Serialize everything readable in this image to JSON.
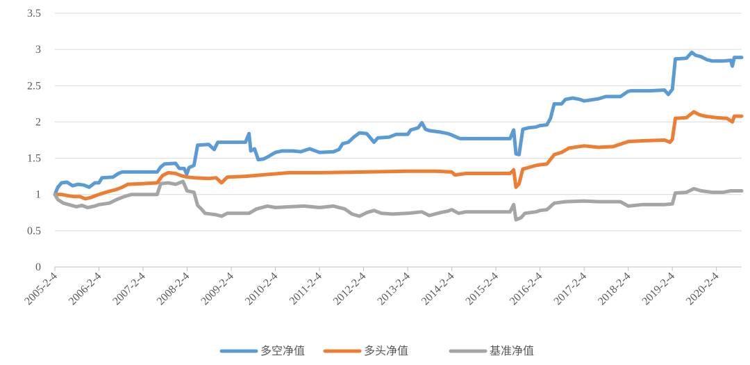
{
  "chart_data": {
    "type": "line",
    "title": "",
    "xlabel": "",
    "ylabel": "",
    "ylim": [
      0,
      3.5
    ],
    "xlim": [
      "2005-02-04",
      "2020-08-31"
    ],
    "grid": "horizontal",
    "legend_position": "bottom",
    "y_ticks": [
      "0",
      "0.5",
      "1",
      "1.5",
      "2",
      "2.5",
      "3",
      "3.5"
    ],
    "x_ticks": [
      {
        "label": "2005-2-4",
        "date": "2005-02-04"
      },
      {
        "label": "2006-2-4",
        "date": "2006-02-04"
      },
      {
        "label": "2007-2-4",
        "date": "2007-02-04"
      },
      {
        "label": "2008-2-4",
        "date": "2008-02-04"
      },
      {
        "label": "2009-2-4",
        "date": "2009-02-04"
      },
      {
        "label": "2010-2-4",
        "date": "2010-02-04"
      },
      {
        "label": "2011-2-4",
        "date": "2011-02-04"
      },
      {
        "label": "2012-2-4",
        "date": "2012-02-04"
      },
      {
        "label": "2013-2-4",
        "date": "2013-02-04"
      },
      {
        "label": "2014-2-4",
        "date": "2014-02-04"
      },
      {
        "label": "2015-2-4",
        "date": "2015-02-04"
      },
      {
        "label": "2016-2-4",
        "date": "2016-02-04"
      },
      {
        "label": "2017-2-4",
        "date": "2017-02-04"
      },
      {
        "label": "2018-2-4",
        "date": "2018-02-04"
      },
      {
        "label": "2019-2-4",
        "date": "2019-02-04"
      },
      {
        "label": "2020-2-4",
        "date": "2020-02-04"
      }
    ],
    "series": [
      {
        "name": "多空净值",
        "color": "#5B9BD5",
        "points": [
          [
            "2005-02-04",
            1.0
          ],
          [
            "2005-03-01",
            1.1
          ],
          [
            "2005-04-01",
            1.16
          ],
          [
            "2005-05-15",
            1.17
          ],
          [
            "2005-07-01",
            1.12
          ],
          [
            "2005-08-15",
            1.14
          ],
          [
            "2005-10-01",
            1.13
          ],
          [
            "2005-11-15",
            1.1
          ],
          [
            "2006-01-01",
            1.16
          ],
          [
            "2006-02-04",
            1.16
          ],
          [
            "2006-03-01",
            1.23
          ],
          [
            "2006-06-01",
            1.24
          ],
          [
            "2006-07-15",
            1.29
          ],
          [
            "2006-08-15",
            1.31
          ],
          [
            "2006-12-31",
            1.31
          ],
          [
            "2007-06-01",
            1.31
          ],
          [
            "2007-07-01",
            1.38
          ],
          [
            "2007-08-01",
            1.42
          ],
          [
            "2007-11-01",
            1.43
          ],
          [
            "2007-12-01",
            1.36
          ],
          [
            "2008-01-10",
            1.36
          ],
          [
            "2008-02-01",
            1.28
          ],
          [
            "2008-02-20",
            1.37
          ],
          [
            "2008-04-01",
            1.4
          ],
          [
            "2008-05-01",
            1.68
          ],
          [
            "2008-08-01",
            1.69
          ],
          [
            "2008-09-15",
            1.62
          ],
          [
            "2008-10-15",
            1.72
          ],
          [
            "2009-02-04",
            1.72
          ],
          [
            "2009-06-01",
            1.72
          ],
          [
            "2009-07-01",
            1.84
          ],
          [
            "2009-07-15",
            1.6
          ],
          [
            "2009-08-15",
            1.63
          ],
          [
            "2009-09-15",
            1.48
          ],
          [
            "2009-11-01",
            1.49
          ],
          [
            "2009-12-15",
            1.53
          ],
          [
            "2010-02-04",
            1.58
          ],
          [
            "2010-04-01",
            1.6
          ],
          [
            "2010-07-01",
            1.6
          ],
          [
            "2010-09-01",
            1.59
          ],
          [
            "2010-11-15",
            1.63
          ],
          [
            "2011-02-04",
            1.58
          ],
          [
            "2011-06-01",
            1.59
          ],
          [
            "2011-07-15",
            1.62
          ],
          [
            "2011-08-15",
            1.7
          ],
          [
            "2011-10-01",
            1.72
          ],
          [
            "2011-11-15",
            1.79
          ],
          [
            "2012-01-01",
            1.85
          ],
          [
            "2012-03-01",
            1.84
          ],
          [
            "2012-04-01",
            1.78
          ],
          [
            "2012-05-01",
            1.72
          ],
          [
            "2012-06-01",
            1.78
          ],
          [
            "2012-09-01",
            1.79
          ],
          [
            "2012-11-01",
            1.83
          ],
          [
            "2013-02-04",
            1.83
          ],
          [
            "2013-03-01",
            1.89
          ],
          [
            "2013-05-01",
            1.92
          ],
          [
            "2013-06-01",
            1.99
          ],
          [
            "2013-07-01",
            1.9
          ],
          [
            "2013-08-01",
            1.88
          ],
          [
            "2013-11-01",
            1.86
          ],
          [
            "2014-01-01",
            1.84
          ],
          [
            "2014-02-04",
            1.82
          ],
          [
            "2014-03-15",
            1.79
          ],
          [
            "2014-04-15",
            1.77
          ],
          [
            "2014-06-01",
            1.77
          ],
          [
            "2014-10-01",
            1.77
          ],
          [
            "2015-02-04",
            1.77
          ],
          [
            "2015-06-01",
            1.77
          ],
          [
            "2015-07-01",
            1.89
          ],
          [
            "2015-07-20",
            1.56
          ],
          [
            "2015-08-15",
            1.55
          ],
          [
            "2015-09-15",
            1.9
          ],
          [
            "2015-11-01",
            1.92
          ],
          [
            "2016-01-01",
            1.93
          ],
          [
            "2016-02-04",
            1.95
          ],
          [
            "2016-04-01",
            1.96
          ],
          [
            "2016-05-01",
            2.05
          ],
          [
            "2016-06-01",
            2.25
          ],
          [
            "2016-08-01",
            2.25
          ],
          [
            "2016-09-01",
            2.31
          ],
          [
            "2016-11-01",
            2.33
          ],
          [
            "2017-01-01",
            2.31
          ],
          [
            "2017-02-04",
            2.29
          ],
          [
            "2017-06-01",
            2.32
          ],
          [
            "2017-08-01",
            2.35
          ],
          [
            "2017-12-01",
            2.35
          ],
          [
            "2018-02-01",
            2.42
          ],
          [
            "2018-03-01",
            2.43
          ],
          [
            "2018-08-01",
            2.43
          ],
          [
            "2018-12-01",
            2.44
          ],
          [
            "2019-01-01",
            2.38
          ],
          [
            "2019-02-04",
            2.45
          ],
          [
            "2019-03-01",
            2.87
          ],
          [
            "2019-06-01",
            2.88
          ],
          [
            "2019-07-15",
            2.96
          ],
          [
            "2019-08-15",
            2.92
          ],
          [
            "2019-10-01",
            2.9
          ],
          [
            "2019-11-15",
            2.86
          ],
          [
            "2020-01-01",
            2.84
          ],
          [
            "2020-04-01",
            2.84
          ],
          [
            "2020-06-01",
            2.85
          ],
          [
            "2020-06-15",
            2.77
          ],
          [
            "2020-07-01",
            2.89
          ],
          [
            "2020-08-31",
            2.89
          ]
        ]
      },
      {
        "name": "多头净值",
        "color": "#ED7D31",
        "points": [
          [
            "2005-02-04",
            1.0
          ],
          [
            "2005-04-01",
            1.0
          ],
          [
            "2005-06-01",
            0.98
          ],
          [
            "2005-07-15",
            0.97
          ],
          [
            "2005-09-01",
            0.97
          ],
          [
            "2005-10-15",
            0.94
          ],
          [
            "2005-12-01",
            0.96
          ],
          [
            "2006-02-04",
            1.0
          ],
          [
            "2006-04-01",
            1.03
          ],
          [
            "2006-07-01",
            1.07
          ],
          [
            "2006-08-15",
            1.1
          ],
          [
            "2006-10-01",
            1.14
          ],
          [
            "2007-02-04",
            1.15
          ],
          [
            "2007-06-01",
            1.16
          ],
          [
            "2007-07-15",
            1.26
          ],
          [
            "2007-09-01",
            1.3
          ],
          [
            "2007-11-01",
            1.29
          ],
          [
            "2007-12-15",
            1.26
          ],
          [
            "2008-02-04",
            1.24
          ],
          [
            "2008-04-01",
            1.23
          ],
          [
            "2008-08-01",
            1.22
          ],
          [
            "2008-10-01",
            1.23
          ],
          [
            "2008-11-15",
            1.16
          ],
          [
            "2009-01-01",
            1.24
          ],
          [
            "2009-06-01",
            1.25
          ],
          [
            "2010-01-01",
            1.28
          ],
          [
            "2010-06-01",
            1.3
          ],
          [
            "2011-02-04",
            1.3
          ],
          [
            "2012-02-04",
            1.31
          ],
          [
            "2013-02-04",
            1.32
          ],
          [
            "2013-10-01",
            1.32
          ],
          [
            "2014-02-04",
            1.31
          ],
          [
            "2014-03-01",
            1.27
          ],
          [
            "2014-06-01",
            1.29
          ],
          [
            "2015-02-04",
            1.29
          ],
          [
            "2015-06-01",
            1.29
          ],
          [
            "2015-07-01",
            1.34
          ],
          [
            "2015-07-20",
            1.1
          ],
          [
            "2015-08-15",
            1.15
          ],
          [
            "2015-09-15",
            1.35
          ],
          [
            "2016-01-01",
            1.4
          ],
          [
            "2016-02-04",
            1.41
          ],
          [
            "2016-04-01",
            1.42
          ],
          [
            "2016-06-01",
            1.55
          ],
          [
            "2016-08-01",
            1.58
          ],
          [
            "2016-10-01",
            1.64
          ],
          [
            "2017-02-04",
            1.67
          ],
          [
            "2017-06-01",
            1.65
          ],
          [
            "2017-10-01",
            1.66
          ],
          [
            "2018-02-04",
            1.73
          ],
          [
            "2018-06-01",
            1.74
          ],
          [
            "2018-12-01",
            1.75
          ],
          [
            "2019-01-15",
            1.72
          ],
          [
            "2019-02-04",
            1.76
          ],
          [
            "2019-03-01",
            2.05
          ],
          [
            "2019-06-01",
            2.06
          ],
          [
            "2019-08-01",
            2.14
          ],
          [
            "2019-09-15",
            2.1
          ],
          [
            "2019-11-01",
            2.08
          ],
          [
            "2020-02-04",
            2.06
          ],
          [
            "2020-05-01",
            2.05
          ],
          [
            "2020-06-15",
            2.0
          ],
          [
            "2020-07-01",
            2.08
          ],
          [
            "2020-08-31",
            2.08
          ]
        ]
      },
      {
        "name": "基准净值",
        "color": "#A5A5A5",
        "points": [
          [
            "2005-02-04",
            1.0
          ],
          [
            "2005-03-01",
            0.93
          ],
          [
            "2005-04-15",
            0.88
          ],
          [
            "2005-06-01",
            0.86
          ],
          [
            "2005-08-01",
            0.83
          ],
          [
            "2005-09-15",
            0.85
          ],
          [
            "2005-11-01",
            0.82
          ],
          [
            "2006-01-01",
            0.84
          ],
          [
            "2006-02-04",
            0.86
          ],
          [
            "2006-05-01",
            0.88
          ],
          [
            "2006-07-01",
            0.93
          ],
          [
            "2006-09-01",
            0.97
          ],
          [
            "2006-11-01",
            1.0
          ],
          [
            "2007-02-04",
            1.0
          ],
          [
            "2007-06-01",
            1.0
          ],
          [
            "2007-07-01",
            1.15
          ],
          [
            "2007-09-01",
            1.16
          ],
          [
            "2007-11-01",
            1.14
          ],
          [
            "2008-01-01",
            1.18
          ],
          [
            "2008-02-04",
            1.05
          ],
          [
            "2008-04-01",
            1.03
          ],
          [
            "2008-05-01",
            0.85
          ],
          [
            "2008-06-01",
            0.8
          ],
          [
            "2008-07-01",
            0.74
          ],
          [
            "2008-10-01",
            0.72
          ],
          [
            "2008-11-15",
            0.7
          ],
          [
            "2009-01-01",
            0.74
          ],
          [
            "2009-04-01",
            0.74
          ],
          [
            "2009-07-01",
            0.74
          ],
          [
            "2009-09-01",
            0.8
          ],
          [
            "2009-12-01",
            0.84
          ],
          [
            "2010-02-04",
            0.82
          ],
          [
            "2010-06-01",
            0.83
          ],
          [
            "2010-10-01",
            0.84
          ],
          [
            "2011-02-04",
            0.82
          ],
          [
            "2011-06-01",
            0.84
          ],
          [
            "2011-09-01",
            0.8
          ],
          [
            "2011-11-01",
            0.73
          ],
          [
            "2012-01-01",
            0.7
          ],
          [
            "2012-03-01",
            0.75
          ],
          [
            "2012-05-01",
            0.78
          ],
          [
            "2012-07-01",
            0.74
          ],
          [
            "2012-10-01",
            0.73
          ],
          [
            "2013-02-04",
            0.74
          ],
          [
            "2013-06-01",
            0.76
          ],
          [
            "2013-08-01",
            0.71
          ],
          [
            "2013-11-01",
            0.75
          ],
          [
            "2014-01-01",
            0.77
          ],
          [
            "2014-02-04",
            0.79
          ],
          [
            "2014-04-01",
            0.74
          ],
          [
            "2014-06-01",
            0.76
          ],
          [
            "2015-02-04",
            0.76
          ],
          [
            "2015-06-01",
            0.76
          ],
          [
            "2015-07-01",
            0.86
          ],
          [
            "2015-07-20",
            0.65
          ],
          [
            "2015-09-01",
            0.68
          ],
          [
            "2015-10-01",
            0.74
          ],
          [
            "2016-01-01",
            0.76
          ],
          [
            "2016-02-04",
            0.78
          ],
          [
            "2016-04-01",
            0.79
          ],
          [
            "2016-06-01",
            0.88
          ],
          [
            "2016-09-01",
            0.9
          ],
          [
            "2017-02-04",
            0.91
          ],
          [
            "2017-06-01",
            0.9
          ],
          [
            "2017-12-01",
            0.9
          ],
          [
            "2018-02-04",
            0.84
          ],
          [
            "2018-06-01",
            0.86
          ],
          [
            "2018-12-01",
            0.86
          ],
          [
            "2019-02-04",
            0.87
          ],
          [
            "2019-03-01",
            1.02
          ],
          [
            "2019-06-01",
            1.03
          ],
          [
            "2019-08-01",
            1.08
          ],
          [
            "2019-10-01",
            1.05
          ],
          [
            "2020-01-01",
            1.03
          ],
          [
            "2020-04-01",
            1.03
          ],
          [
            "2020-06-01",
            1.05
          ],
          [
            "2020-08-31",
            1.05
          ]
        ]
      }
    ]
  }
}
